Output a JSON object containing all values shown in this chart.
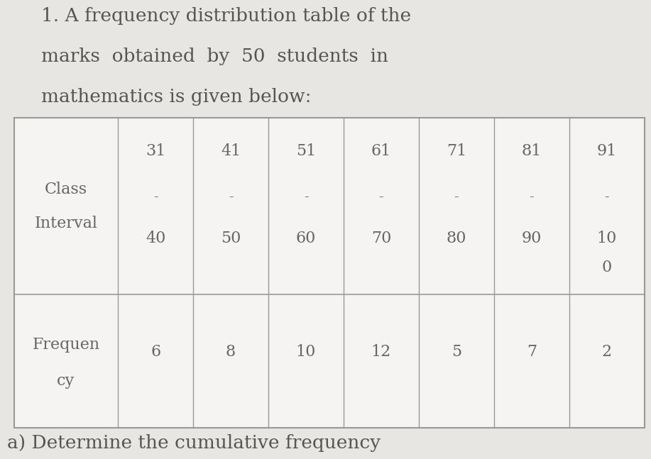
{
  "title_line1": "1. A frequency distribution table of the",
  "title_line2": "marks  obtained  by  50  students  in",
  "title_line3": "mathematics is given below:",
  "footer_text": "a) Determine the cumulative frequency",
  "class_tops": [
    "31",
    "41",
    "51",
    "61",
    "71",
    "81",
    "91"
  ],
  "class_bots": [
    "40",
    "50",
    "60",
    "70",
    "80",
    "90",
    "10\n0"
  ],
  "freq_values": [
    "6",
    "8",
    "10",
    "12",
    "5",
    "7",
    "2"
  ],
  "background_color": "#e8e6e2",
  "table_bg": "#f5f4f2",
  "border_color": "#999999",
  "text_color": "#666666",
  "title_color": "#555555",
  "footer_color": "#555555",
  "title_fontsize": 19,
  "table_fontsize": 16
}
